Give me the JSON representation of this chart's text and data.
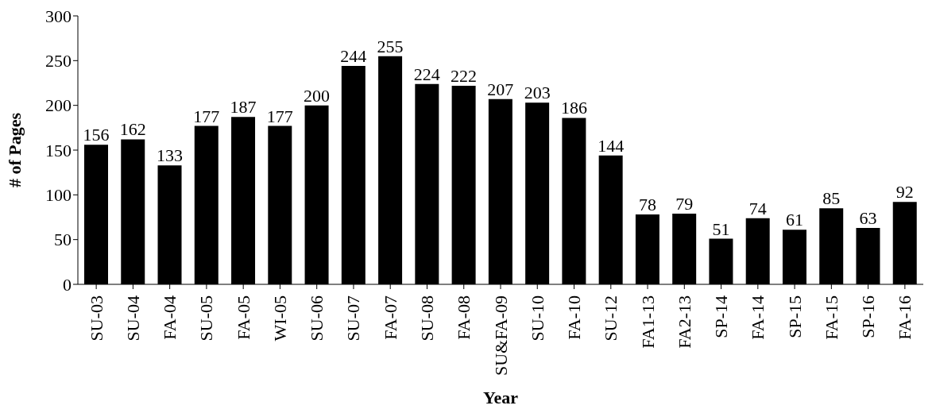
{
  "chart_data": {
    "type": "bar",
    "xlabel": "Year",
    "ylabel": "# of Pages",
    "categories": [
      "SU-03",
      "SU-04",
      "FA-04",
      "SU-05",
      "FA-05",
      "WI-05",
      "SU-06",
      "SU-07",
      "FA-07",
      "SU-08",
      "FA-08",
      "SU&FA-09",
      "SU-10",
      "FA-10",
      "SU-12",
      "FA1-13",
      "FA2-13",
      "SP-14",
      "FA-14",
      "SP-15",
      "FA-15",
      "SP-16",
      "FA-16"
    ],
    "values": [
      156,
      162,
      133,
      177,
      187,
      177,
      200,
      244,
      255,
      224,
      222,
      207,
      203,
      186,
      144,
      78,
      79,
      51,
      74,
      61,
      85,
      63,
      92
    ],
    "color": "#000000",
    "ylim": [
      0,
      300
    ],
    "yticks": [
      0,
      50,
      100,
      150,
      200,
      250,
      300
    ],
    "data_labels": true
  }
}
